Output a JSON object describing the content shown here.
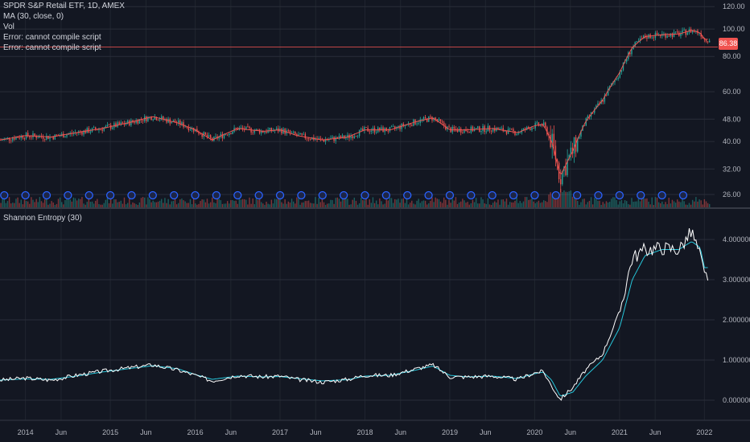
{
  "legend": {
    "symbol": "SPDR S&P Retail ETF, 1D, AMEX",
    "ma": "MA (30, close, 0)",
    "vol": "Vol",
    "error1": "Error: cannot compile script",
    "error2": "Error: cannot compile script"
  },
  "lower_title": "Shannon Entropy (30)",
  "current_price_label": "86.38",
  "colors": {
    "background": "#131722",
    "grid": "#2a2e39",
    "up": "#26a69a",
    "down": "#ef5350",
    "ma": "#ef5350",
    "entropy": "#ffffff",
    "entropy_ma": "#26c6da",
    "event_marker": "#2962ff"
  },
  "chart_data": [
    {
      "type": "candlestick",
      "title": "SPDR S&P Retail ETF, 1D, AMEX",
      "yaxis_scale": "log",
      "yticks": [
        "120.00",
        "100.00",
        "80.00",
        "60.00",
        "48.00",
        "40.00",
        "32.00",
        "26.00"
      ],
      "xticks": [
        "2014",
        "Jun",
        "2015",
        "Jun",
        "2016",
        "Jun",
        "2017",
        "Jun",
        "2018",
        "Jun",
        "2019",
        "Jun",
        "2020",
        "Jun",
        "2021",
        "Jun",
        "2022"
      ],
      "last_price": 86.38,
      "series": [
        {
          "name": "MA (30, close, 0)",
          "x": [
            2013.7,
            2014.0,
            2014.3,
            2014.6,
            2014.9,
            2015.2,
            2015.5,
            2015.8,
            2016.0,
            2016.2,
            2016.5,
            2016.8,
            2017.0,
            2017.2,
            2017.5,
            2017.8,
            2018.0,
            2018.3,
            2018.6,
            2018.8,
            2019.0,
            2019.2,
            2019.5,
            2019.8,
            2020.0,
            2020.1,
            2020.2,
            2020.3,
            2020.45,
            2020.6,
            2020.8,
            2021.0,
            2021.15,
            2021.3,
            2021.5,
            2021.7,
            2021.85,
            2021.95,
            2022.0
          ],
          "values": [
            40.5,
            42.0,
            41.5,
            43.0,
            44.5,
            46.5,
            49.0,
            46.5,
            44.0,
            40.5,
            44.5,
            43.5,
            44.0,
            42.0,
            40.5,
            41.5,
            44.0,
            44.0,
            47.0,
            48.5,
            44.0,
            44.0,
            44.5,
            43.0,
            45.5,
            46.0,
            40.0,
            30.0,
            37.0,
            47.0,
            56.0,
            70.0,
            86.0,
            94.0,
            95.5,
            96.0,
            99.0,
            97.0,
            92.0
          ]
        }
      ]
    },
    {
      "type": "line",
      "title": "Shannon Entropy (30)",
      "yticks": [
        "4.000000",
        "3.000000",
        "2.000000",
        "1.000000",
        "0.000000"
      ],
      "series": [
        {
          "x": [
            2013.7,
            2014.0,
            2014.3,
            2014.6,
            2014.9,
            2015.2,
            2015.5,
            2015.8,
            2016.0,
            2016.2,
            2016.5,
            2016.8,
            2017.0,
            2017.2,
            2017.5,
            2017.8,
            2018.0,
            2018.3,
            2018.6,
            2018.8,
            2019.0,
            2019.2,
            2019.5,
            2019.8,
            2020.0,
            2020.1,
            2020.2,
            2020.3,
            2020.45,
            2020.6,
            2020.8,
            2021.0,
            2021.15,
            2021.3,
            2021.5,
            2021.7,
            2021.85,
            2021.95,
            2022.0
          ],
          "values": [
            0.5,
            0.55,
            0.5,
            0.62,
            0.72,
            0.8,
            0.88,
            0.75,
            0.62,
            0.48,
            0.62,
            0.58,
            0.6,
            0.52,
            0.45,
            0.52,
            0.62,
            0.62,
            0.78,
            0.88,
            0.58,
            0.58,
            0.6,
            0.52,
            0.68,
            0.72,
            0.35,
            0.02,
            0.32,
            0.75,
            1.15,
            2.2,
            3.55,
            3.75,
            3.8,
            3.75,
            4.2,
            3.6,
            3.1
          ]
        },
        {
          "x": [
            2013.7,
            2014.0,
            2014.3,
            2014.6,
            2014.9,
            2015.2,
            2015.5,
            2015.8,
            2016.0,
            2016.2,
            2016.5,
            2016.8,
            2017.0,
            2017.2,
            2017.5,
            2017.8,
            2018.0,
            2018.3,
            2018.6,
            2018.8,
            2019.0,
            2019.2,
            2019.5,
            2019.8,
            2020.0,
            2020.1,
            2020.2,
            2020.3,
            2020.45,
            2020.6,
            2020.8,
            2021.0,
            2021.15,
            2021.3,
            2021.5,
            2021.7,
            2021.85,
            2021.95,
            2022.0
          ],
          "values": [
            0.5,
            0.53,
            0.52,
            0.6,
            0.7,
            0.78,
            0.86,
            0.78,
            0.64,
            0.52,
            0.6,
            0.58,
            0.59,
            0.54,
            0.48,
            0.51,
            0.6,
            0.62,
            0.75,
            0.85,
            0.62,
            0.58,
            0.6,
            0.54,
            0.66,
            0.7,
            0.5,
            0.1,
            0.2,
            0.6,
            1.0,
            1.8,
            3.0,
            3.6,
            3.75,
            3.75,
            3.95,
            3.8,
            3.3
          ]
        }
      ]
    }
  ]
}
